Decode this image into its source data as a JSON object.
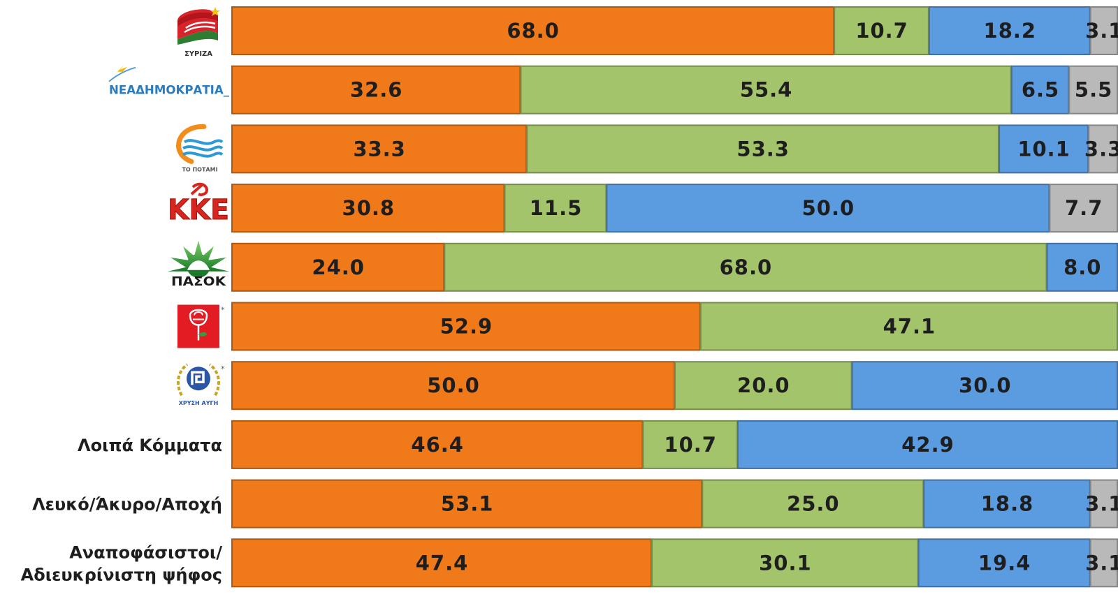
{
  "chart_data": {
    "type": "bar",
    "orientation": "horizontal",
    "stacked": true,
    "percent": true,
    "categories": [
      "ΣΥΡΙΖΑ",
      "ΝΕΑΔΗΜΟΚΡΑΤΙΑ",
      "ΤΟ ΠΟΤΑΜΙ",
      "ΚΚΕ",
      "ΠΑΣΟΚ",
      "",
      "ΧΡΥΣΗ ΑΥΓΗ",
      "Λοιπά Κόμματα",
      "Λευκό/Άκυρο/Αποχή",
      "Αναποφάσιστοι/ Αδιευκρίνιστη ψήφος"
    ],
    "label_lines": [
      [
        "ΣΥΡΙΖΑ"
      ],
      [
        "ΝΕΑΔΗΜΟΚΡΑΤΙΑ"
      ],
      [
        "ΤΟ ΠΟΤΑΜΙ"
      ],
      [
        "ΚΚΕ"
      ],
      [
        "ΠΑΣΟΚ"
      ],
      [
        ""
      ],
      [
        "ΧΡΥΣΗ ΑΥΓΗ"
      ],
      [
        "Λοιπά Κόμματα"
      ],
      [
        "Λευκό/Άκυρο/Αποχή"
      ],
      [
        "Αναποφάσιστοι/",
        "Αδιευκρίνιστη ψήφος"
      ]
    ],
    "logos": [
      "syriza",
      "nd",
      "potami",
      "kke",
      "pasok",
      "rose",
      "golden-dawn",
      null,
      null,
      null
    ],
    "logo_marks": {
      "rose": "*",
      "golden-dawn": "*"
    },
    "series": [
      {
        "color": "#f07a1a",
        "values": [
          68.0,
          32.6,
          33.3,
          30.8,
          24.0,
          52.9,
          50.0,
          46.4,
          53.1,
          47.4
        ]
      },
      {
        "color": "#a3c46a",
        "values": [
          10.7,
          55.4,
          53.3,
          11.5,
          68.0,
          47.1,
          20.0,
          10.7,
          25.0,
          30.1
        ]
      },
      {
        "color": "#5b9be0",
        "values": [
          18.2,
          6.5,
          10.1,
          50.0,
          8.0,
          0,
          30.0,
          42.9,
          18.8,
          19.4
        ]
      },
      {
        "color": "#b9b9b9",
        "values": [
          3.1,
          5.5,
          3.3,
          7.7,
          0,
          0,
          0,
          0,
          3.1,
          3.1
        ]
      }
    ],
    "legend": "none",
    "grid": false,
    "xlim": [
      0,
      100
    ]
  }
}
